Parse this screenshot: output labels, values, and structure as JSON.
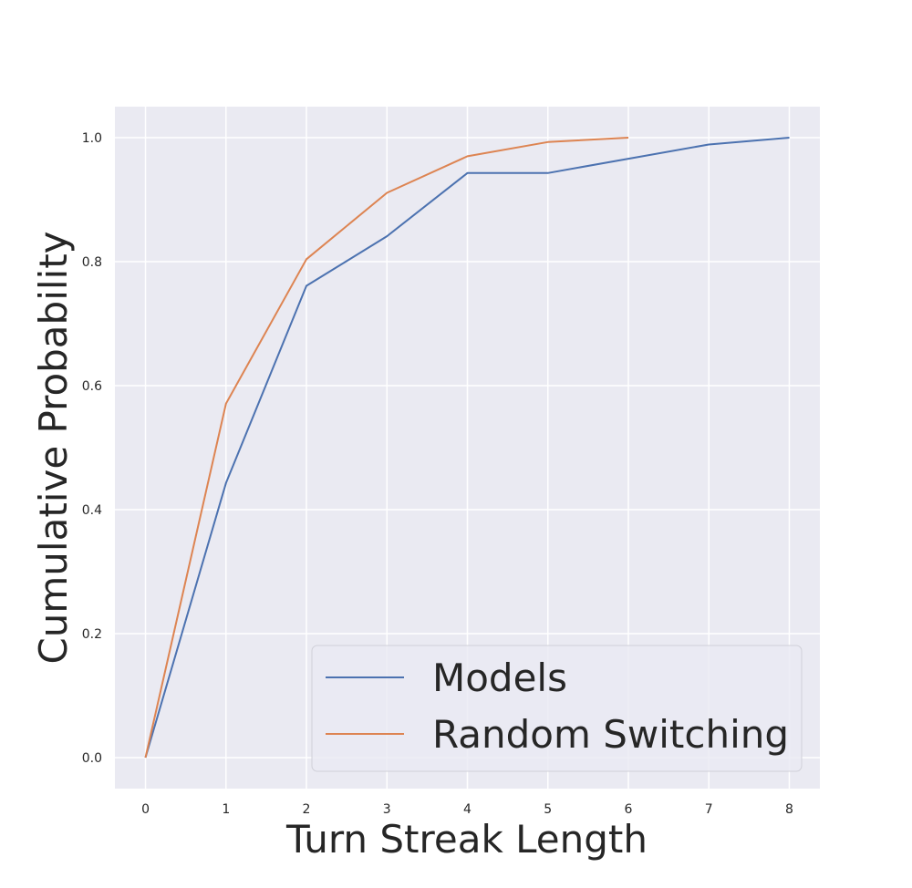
{
  "chart_data": {
    "type": "line",
    "title": "",
    "xlabel": "Turn Streak Length",
    "ylabel": "Cumulative Probability",
    "xlim": [
      -0.38,
      8.38
    ],
    "ylim": [
      -0.05,
      1.05
    ],
    "xticks": [
      "0",
      "1",
      "2",
      "3",
      "4",
      "5",
      "6",
      "7",
      "8"
    ],
    "yticks": [
      "0.0",
      "0.2",
      "0.4",
      "0.6",
      "0.8",
      "1.0"
    ],
    "grid": true,
    "legend_position": "lower-right",
    "series": [
      {
        "name": "Models",
        "color": "#4c72b0",
        "x": [
          0,
          1,
          2,
          3,
          4,
          5,
          6,
          7,
          8
        ],
        "y": [
          0.0,
          0.443,
          0.761,
          0.841,
          0.943,
          0.943,
          0.966,
          0.989,
          1.0
        ]
      },
      {
        "name": "Random Switching",
        "color": "#dd8452",
        "x": [
          0,
          1,
          2,
          3,
          4,
          5,
          6
        ],
        "y": [
          0.0,
          0.571,
          0.804,
          0.911,
          0.97,
          0.993,
          1.0
        ]
      }
    ]
  },
  "colors": {
    "plot_background": "#eaeaf2",
    "grid": "#ffffff",
    "text": "#262626"
  }
}
